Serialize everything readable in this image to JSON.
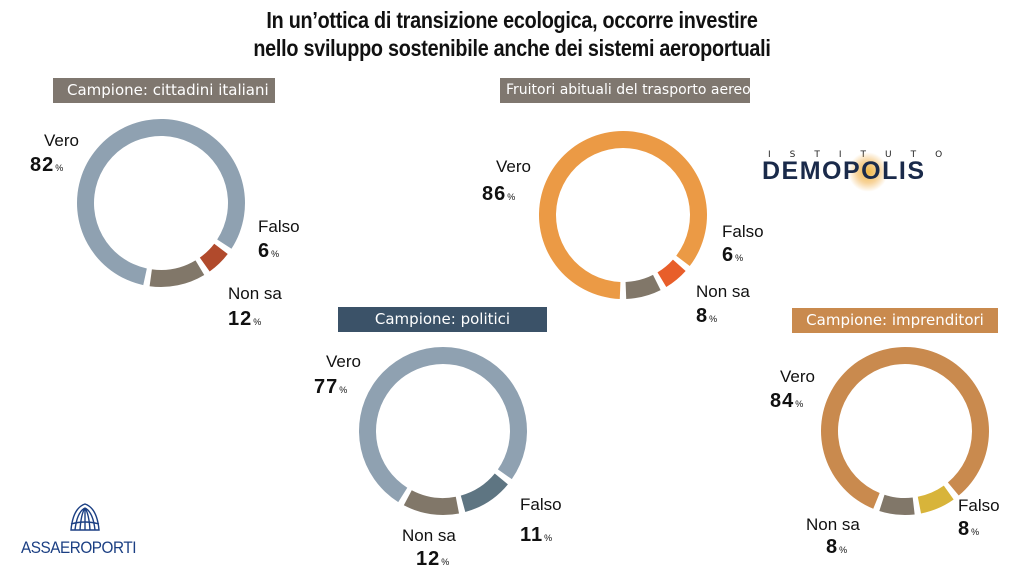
{
  "title": {
    "line1": "In un’ottica di transizione ecologica, occorre investire",
    "line2": "nello sviluppo sostenibile anche dei sistemi aeroportuali"
  },
  "branding": {
    "demopolis_top": "ISTITUTO",
    "demopolis_name": "DEMOPOLIS",
    "assaeroporti_name": "ASSAEROPORTI"
  },
  "chart_data": [
    {
      "type": "pie",
      "title": "Campione: cittadini italiani",
      "categories": [
        "Vero",
        "Falso",
        "Non sa"
      ],
      "values": [
        82,
        6,
        12
      ],
      "value_labels": [
        "82",
        "6",
        "12"
      ],
      "unit": "%",
      "colors": [
        "#8fa1b1",
        "#b14a2c",
        "#817769"
      ],
      "badge_color": "#7f776f"
    },
    {
      "type": "pie",
      "title": "Fruitori abituali del trasporto aereo",
      "categories": [
        "Vero",
        "Falso",
        "Non sa"
      ],
      "values": [
        86,
        6,
        8
      ],
      "value_labels": [
        "86",
        "6",
        "8"
      ],
      "unit": "%",
      "colors": [
        "#eb9a45",
        "#e85e2a",
        "#817769"
      ],
      "badge_color": "#7f776f"
    },
    {
      "type": "pie",
      "title": "Campione: politici",
      "categories": [
        "Vero",
        "Falso",
        "Non sa"
      ],
      "values": [
        77,
        11,
        12
      ],
      "value_labels": [
        "77",
        "11",
        "12"
      ],
      "unit": "%",
      "colors": [
        "#8fa1b1",
        "#5e7582",
        "#817769"
      ],
      "badge_color": "#3b5268"
    },
    {
      "type": "pie",
      "title": "Campione: imprenditori",
      "categories": [
        "Vero",
        "Falso",
        "Non sa"
      ],
      "values": [
        84,
        8,
        8
      ],
      "value_labels": [
        "84",
        "8",
        "8"
      ],
      "unit": "%",
      "colors": [
        "#c98a4e",
        "#d8b43a",
        "#817769"
      ],
      "badge_color": "#c98a4e"
    }
  ]
}
